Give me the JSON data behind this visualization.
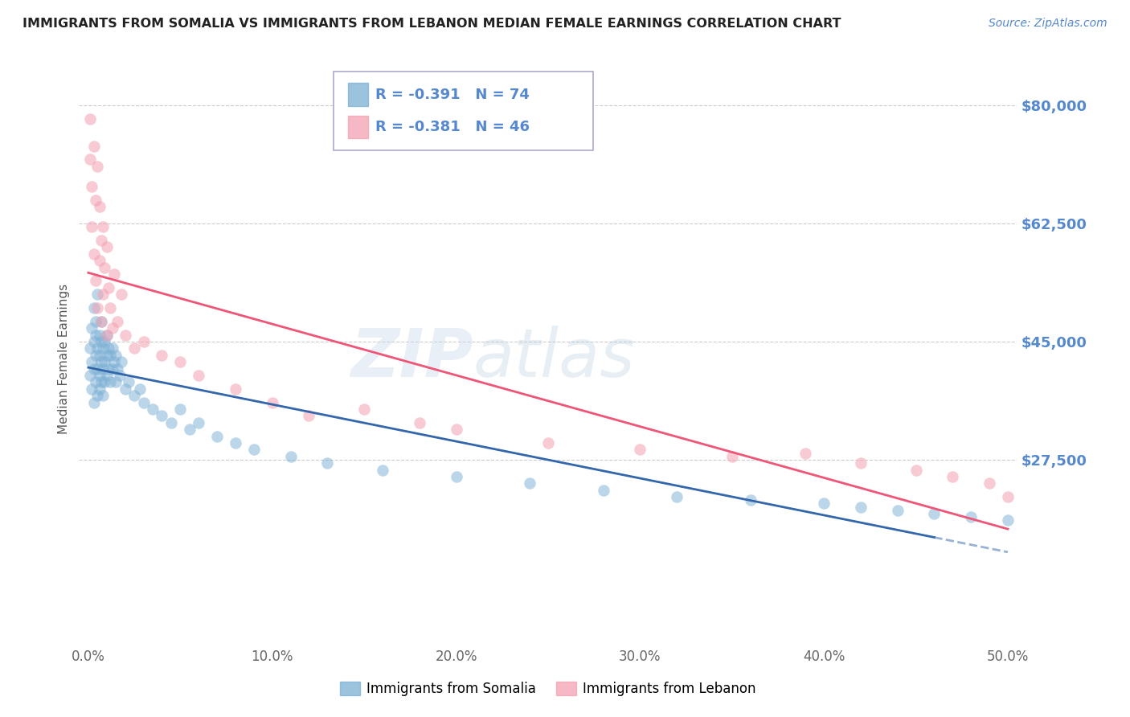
{
  "title": "IMMIGRANTS FROM SOMALIA VS IMMIGRANTS FROM LEBANON MEDIAN FEMALE EARNINGS CORRELATION CHART",
  "source": "Source: ZipAtlas.com",
  "ylabel": "Median Female Earnings",
  "xlim": [
    -0.005,
    0.505
  ],
  "ylim": [
    0,
    85000
  ],
  "yticks": [
    27500,
    45000,
    62500,
    80000
  ],
  "ytick_labels": [
    "$27,500",
    "$45,000",
    "$62,500",
    "$80,000"
  ],
  "xticks": [
    0.0,
    0.1,
    0.2,
    0.3,
    0.4,
    0.5
  ],
  "xtick_labels": [
    "0.0%",
    "10.0%",
    "20.0%",
    "30.0%",
    "40.0%",
    "50.0%"
  ],
  "somalia_color": "#7BAFD4",
  "lebanon_color": "#F4A0B0",
  "regression_somalia_color": "#3366AA",
  "regression_lebanon_color": "#EE5577",
  "legend_R_somalia": "R = -0.391",
  "legend_N_somalia": "N = 74",
  "legend_R_lebanon": "R = -0.381",
  "legend_N_lebanon": "N = 46",
  "legend_label_somalia": "Immigrants from Somalia",
  "legend_label_lebanon": "Immigrants from Lebanon",
  "background_color": "#FFFFFF",
  "grid_color": "#CCCCCC",
  "title_color": "#222222",
  "axis_color": "#5588CC",
  "somalia_x": [
    0.001,
    0.001,
    0.002,
    0.002,
    0.002,
    0.003,
    0.003,
    0.003,
    0.003,
    0.004,
    0.004,
    0.004,
    0.004,
    0.005,
    0.005,
    0.005,
    0.005,
    0.006,
    0.006,
    0.006,
    0.006,
    0.007,
    0.007,
    0.007,
    0.007,
    0.008,
    0.008,
    0.008,
    0.009,
    0.009,
    0.009,
    0.01,
    0.01,
    0.01,
    0.011,
    0.011,
    0.012,
    0.012,
    0.013,
    0.013,
    0.014,
    0.015,
    0.015,
    0.016,
    0.017,
    0.018,
    0.02,
    0.022,
    0.025,
    0.028,
    0.03,
    0.035,
    0.04,
    0.045,
    0.05,
    0.055,
    0.06,
    0.07,
    0.08,
    0.09,
    0.11,
    0.13,
    0.16,
    0.2,
    0.24,
    0.28,
    0.32,
    0.36,
    0.4,
    0.42,
    0.44,
    0.46,
    0.48,
    0.5
  ],
  "somalia_y": [
    44000,
    40000,
    47000,
    42000,
    38000,
    45000,
    41000,
    50000,
    36000,
    46000,
    43000,
    39000,
    48000,
    44000,
    41000,
    37000,
    52000,
    43000,
    40000,
    46000,
    38000,
    45000,
    42000,
    39000,
    48000,
    44000,
    41000,
    37000,
    45000,
    42000,
    39000,
    46000,
    43000,
    40000,
    44000,
    41000,
    43000,
    39000,
    44000,
    41000,
    42000,
    43000,
    39000,
    41000,
    40000,
    42000,
    38000,
    39000,
    37000,
    38000,
    36000,
    35000,
    34000,
    33000,
    35000,
    32000,
    33000,
    31000,
    30000,
    29000,
    28000,
    27000,
    26000,
    25000,
    24000,
    23000,
    22000,
    21500,
    21000,
    20500,
    20000,
    19500,
    19000,
    18500
  ],
  "lebanon_x": [
    0.001,
    0.001,
    0.002,
    0.002,
    0.003,
    0.003,
    0.004,
    0.004,
    0.005,
    0.005,
    0.006,
    0.006,
    0.007,
    0.007,
    0.008,
    0.008,
    0.009,
    0.01,
    0.01,
    0.011,
    0.012,
    0.013,
    0.014,
    0.016,
    0.018,
    0.02,
    0.025,
    0.03,
    0.04,
    0.05,
    0.06,
    0.08,
    0.1,
    0.12,
    0.15,
    0.18,
    0.2,
    0.25,
    0.3,
    0.35,
    0.39,
    0.42,
    0.45,
    0.47,
    0.49,
    0.5
  ],
  "lebanon_y": [
    78000,
    72000,
    68000,
    62000,
    74000,
    58000,
    66000,
    54000,
    71000,
    50000,
    65000,
    57000,
    60000,
    48000,
    62000,
    52000,
    56000,
    59000,
    46000,
    53000,
    50000,
    47000,
    55000,
    48000,
    52000,
    46000,
    44000,
    45000,
    43000,
    42000,
    40000,
    38000,
    36000,
    34000,
    35000,
    33000,
    32000,
    30000,
    29000,
    28000,
    28500,
    27000,
    26000,
    25000,
    24000,
    22000
  ]
}
